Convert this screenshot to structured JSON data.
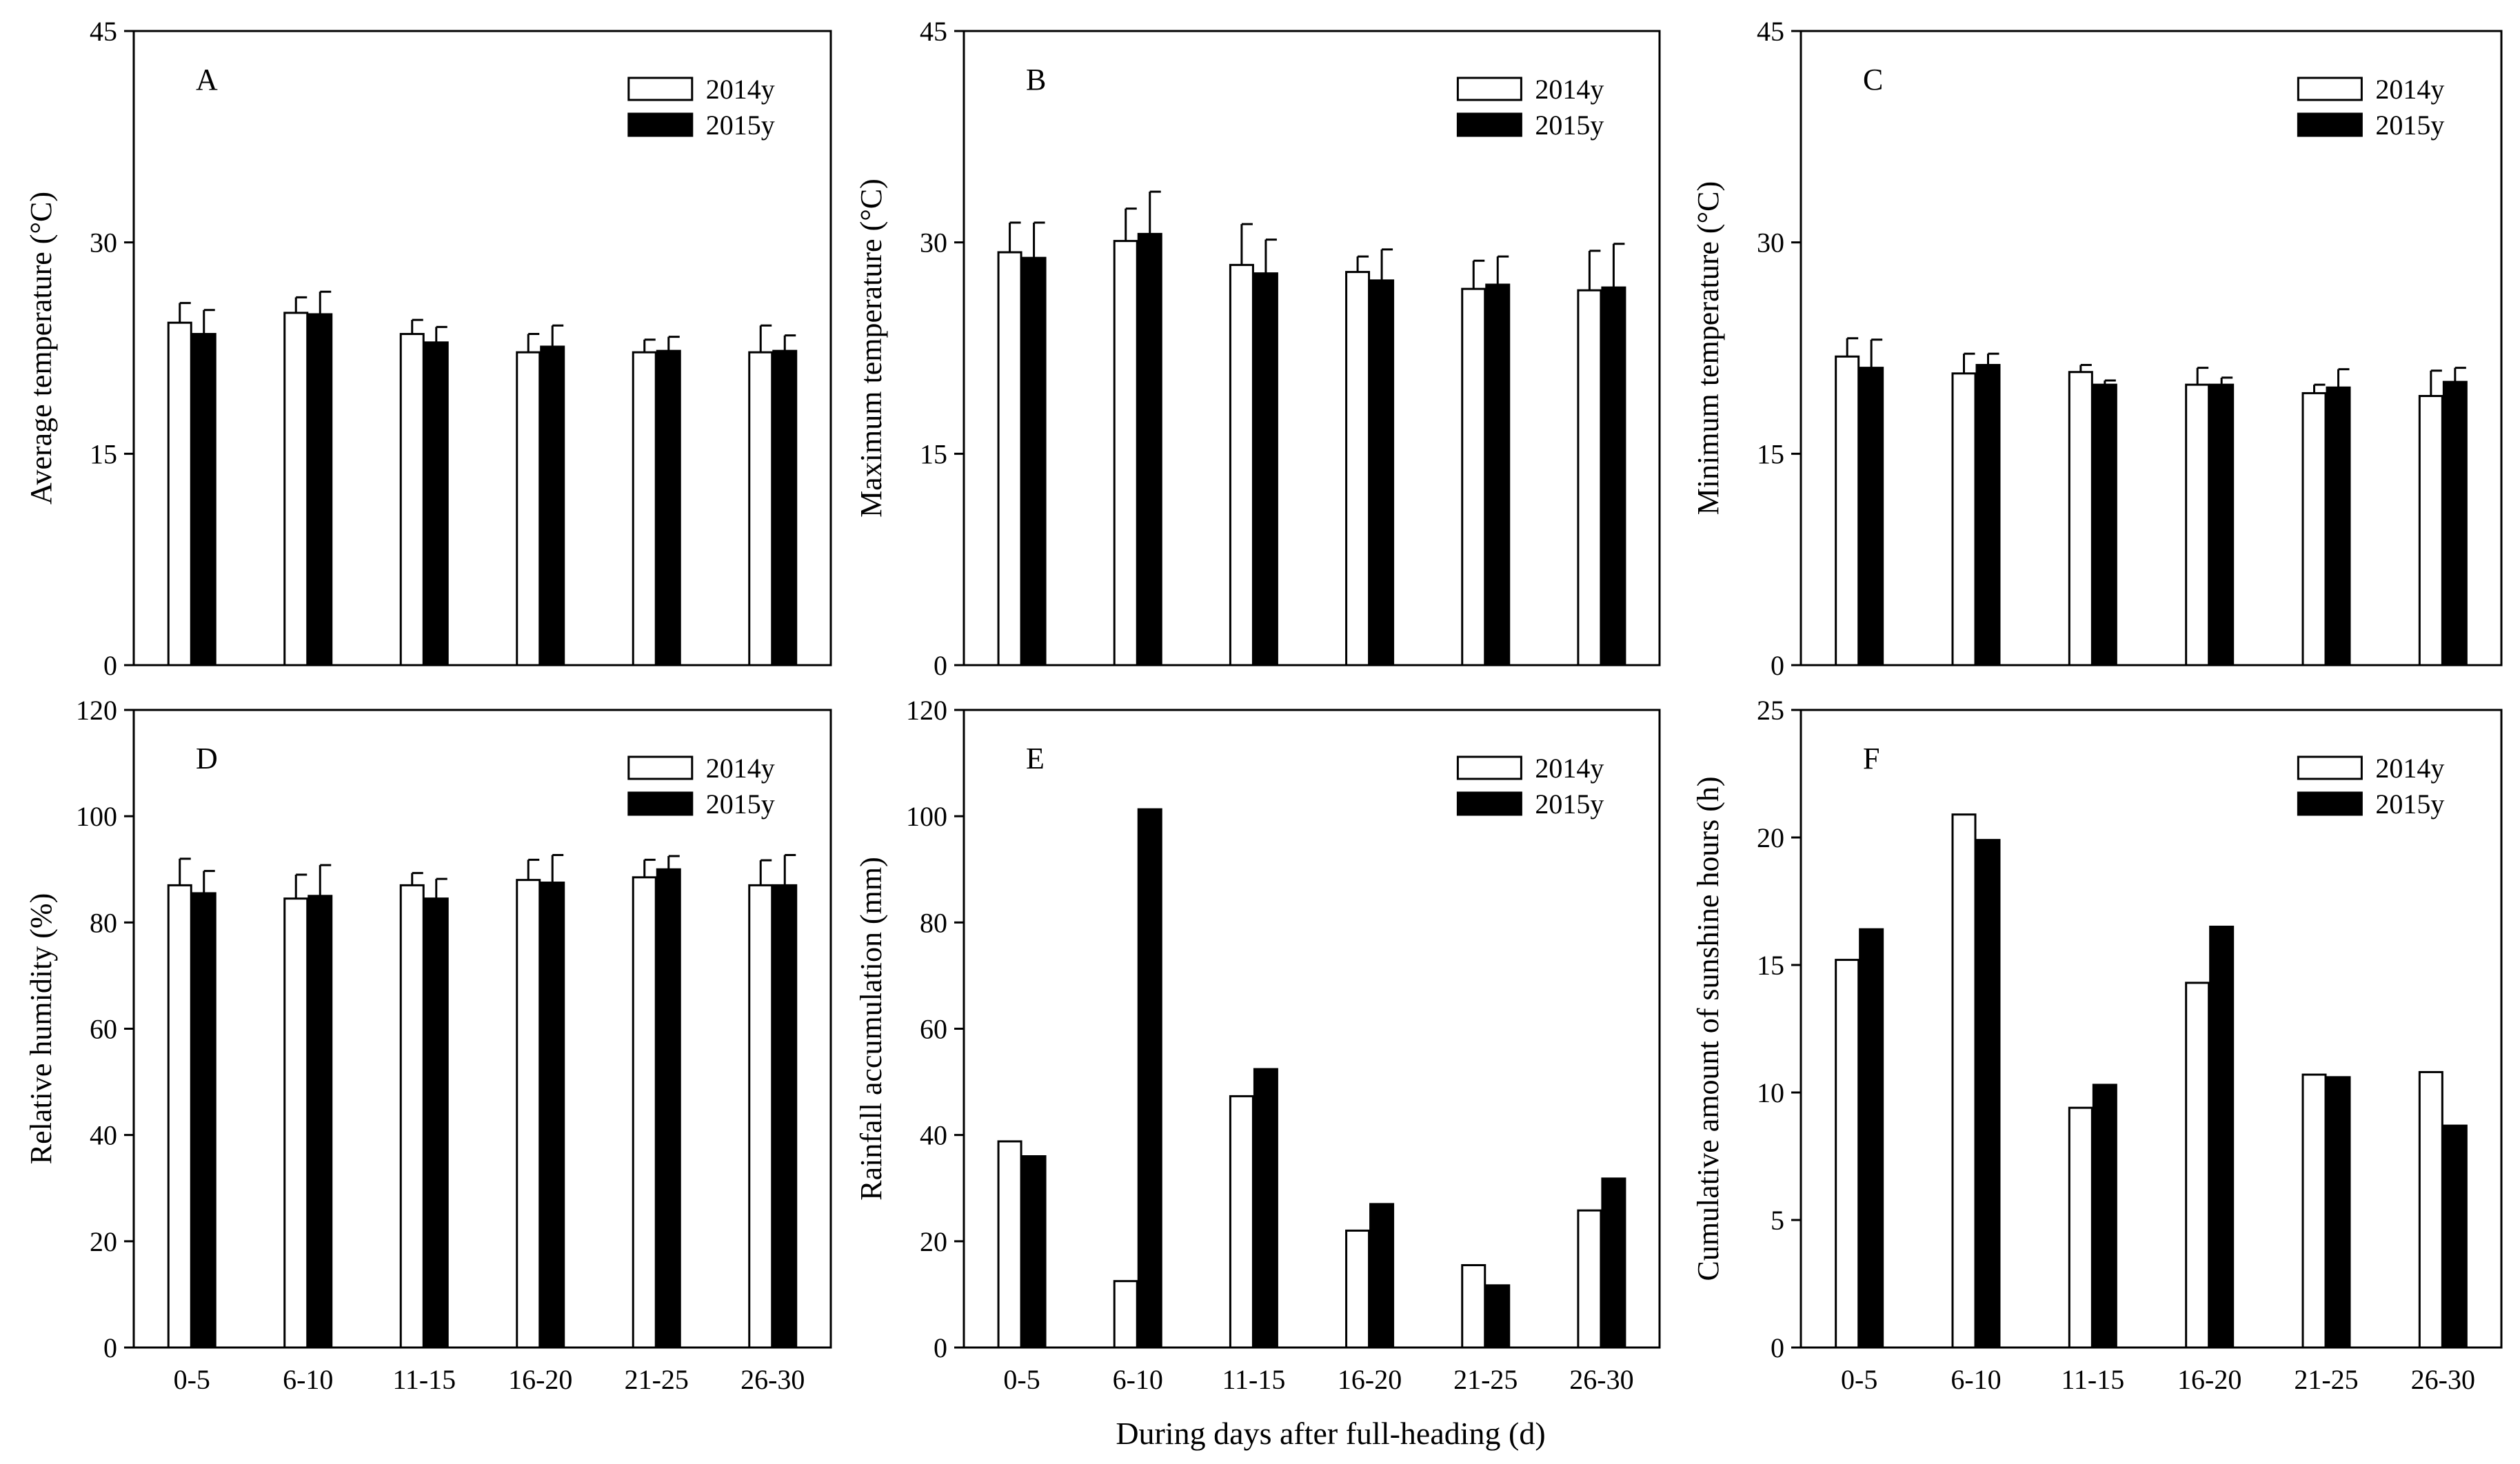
{
  "figure": {
    "xlabel": "During days after full-heading (d)"
  },
  "legend": {
    "series_2014": "2014y",
    "series_2015": "2015y"
  },
  "colors": {
    "series_2014": "#ffffff",
    "series_2015": "#000000",
    "axis": "#000000"
  },
  "chart_data": [
    {
      "id": "A",
      "panel_letter": "A",
      "type": "bar",
      "ylabel": "Average temperature (°C)",
      "ylim": [
        0,
        45
      ],
      "yticks": [
        0,
        15,
        30,
        45
      ],
      "categories": [
        "0-5",
        "6-10",
        "11-15",
        "16-20",
        "21-25",
        "26-30"
      ],
      "show_category_labels": false,
      "series": [
        {
          "name": "2014y",
          "values": [
            24.3,
            25.0,
            23.5,
            22.2,
            22.2,
            22.2
          ],
          "errors": [
            1.4,
            1.1,
            1.0,
            1.3,
            0.9,
            1.9
          ]
        },
        {
          "name": "2015y",
          "values": [
            23.5,
            24.9,
            22.9,
            22.6,
            22.3,
            22.3
          ],
          "errors": [
            1.7,
            1.6,
            1.1,
            1.5,
            1.0,
            1.1
          ]
        }
      ]
    },
    {
      "id": "B",
      "panel_letter": "B",
      "type": "bar",
      "ylabel": "Maximum temperature (°C)",
      "ylim": [
        0,
        45
      ],
      "yticks": [
        0,
        15,
        30,
        45
      ],
      "categories": [
        "0-5",
        "6-10",
        "11-15",
        "16-20",
        "21-25",
        "26-30"
      ],
      "show_category_labels": false,
      "series": [
        {
          "name": "2014y",
          "values": [
            29.3,
            30.1,
            28.4,
            27.9,
            26.7,
            26.6
          ],
          "errors": [
            2.1,
            2.3,
            2.9,
            1.1,
            2.0,
            2.8
          ]
        },
        {
          "name": "2015y",
          "values": [
            28.9,
            30.6,
            27.8,
            27.3,
            27.0,
            26.8
          ],
          "errors": [
            2.5,
            3.0,
            2.4,
            2.2,
            2.0,
            3.1
          ]
        }
      ]
    },
    {
      "id": "C",
      "panel_letter": "C",
      "type": "bar",
      "ylabel": "Minimum temperature (°C)",
      "ylim": [
        0,
        45
      ],
      "yticks": [
        0,
        15,
        30,
        45
      ],
      "categories": [
        "0-5",
        "6-10",
        "11-15",
        "16-20",
        "21-25",
        "26-30"
      ],
      "show_category_labels": false,
      "series": [
        {
          "name": "2014y",
          "values": [
            21.9,
            20.7,
            20.8,
            19.9,
            19.3,
            19.1
          ],
          "errors": [
            1.3,
            1.4,
            0.5,
            1.2,
            0.6,
            1.8
          ]
        },
        {
          "name": "2015y",
          "values": [
            21.1,
            21.3,
            19.9,
            19.9,
            19.7,
            20.1
          ],
          "errors": [
            2.0,
            0.8,
            0.3,
            0.5,
            1.3,
            1.0
          ]
        }
      ]
    },
    {
      "id": "D",
      "panel_letter": "D",
      "type": "bar",
      "ylabel": "Relative humidity (%)",
      "ylim": [
        0,
        120
      ],
      "yticks": [
        0,
        20,
        40,
        60,
        80,
        100,
        120
      ],
      "categories": [
        "0-5",
        "6-10",
        "11-15",
        "16-20",
        "21-25",
        "26-30"
      ],
      "show_category_labels": true,
      "series": [
        {
          "name": "2014y",
          "values": [
            87.0,
            84.5,
            87.0,
            88.0,
            88.5,
            87.0
          ],
          "errors": [
            5.0,
            4.5,
            2.3,
            3.8,
            3.3,
            4.7
          ]
        },
        {
          "name": "2015y",
          "values": [
            85.5,
            85.0,
            84.5,
            87.5,
            90.0,
            87.0
          ],
          "errors": [
            4.2,
            5.8,
            3.7,
            5.2,
            2.5,
            5.7
          ]
        }
      ]
    },
    {
      "id": "E",
      "panel_letter": "E",
      "type": "bar",
      "ylabel": "Rainfall accumulation (mm)",
      "ylim": [
        0,
        120
      ],
      "yticks": [
        0,
        20,
        40,
        60,
        80,
        100,
        120
      ],
      "categories": [
        "0-5",
        "6-10",
        "11-15",
        "16-20",
        "21-25",
        "26-30"
      ],
      "show_category_labels": true,
      "series": [
        {
          "name": "2014y",
          "values": [
            38.8,
            12.5,
            47.3,
            22.0,
            15.5,
            25.8
          ]
        },
        {
          "name": "2015y",
          "values": [
            36.0,
            101.3,
            52.4,
            27.0,
            11.7,
            31.8
          ]
        }
      ]
    },
    {
      "id": "F",
      "panel_letter": "F",
      "type": "bar",
      "ylabel": "Cumulative amount of sunshine hours (h)",
      "ylim": [
        0,
        25
      ],
      "yticks": [
        0,
        5,
        10,
        15,
        20,
        25
      ],
      "categories": [
        "0-5",
        "6-10",
        "11-15",
        "16-20",
        "21-25",
        "26-30"
      ],
      "show_category_labels": true,
      "series": [
        {
          "name": "2014y",
          "values": [
            15.2,
            20.9,
            9.4,
            14.3,
            10.7,
            10.8
          ]
        },
        {
          "name": "2015y",
          "values": [
            16.4,
            19.9,
            10.3,
            16.5,
            10.6,
            8.7
          ]
        }
      ]
    }
  ]
}
